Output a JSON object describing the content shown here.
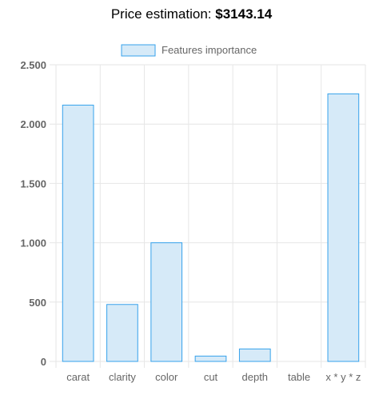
{
  "header": {
    "label": "Price estimation:",
    "price": "$3143.14"
  },
  "colors": {
    "bar_fill": "#d6eaf8",
    "bar_stroke": "#36a2eb",
    "grid": "#e6e6e6",
    "tick_text": "#666666"
  },
  "chart_data": {
    "type": "bar",
    "title": "",
    "xlabel": "",
    "ylabel": "",
    "categories": [
      "carat",
      "clarity",
      "color",
      "cut",
      "depth",
      "table",
      "x * y * z"
    ],
    "series": [
      {
        "name": "Features importance",
        "values": [
          2160,
          480,
          1000,
          45,
          105,
          0,
          2255
        ]
      }
    ],
    "ylim": [
      0,
      2500
    ],
    "yticks": [
      0,
      500,
      1000,
      1500,
      2000,
      2500
    ],
    "ytick_labels": [
      "0",
      "500",
      "1.000",
      "1.500",
      "2.000",
      "2.500"
    ],
    "grid": true,
    "legend": "top-center"
  }
}
